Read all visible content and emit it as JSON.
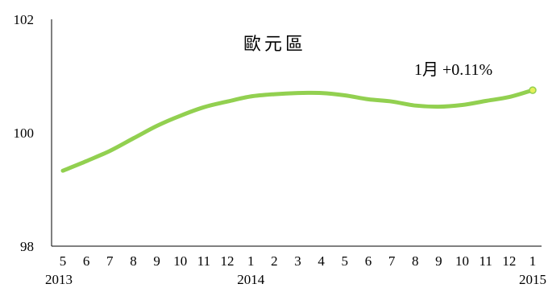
{
  "chart_data": {
    "type": "line",
    "title": "歐元區",
    "xlabel": "",
    "ylabel": "",
    "ylim": [
      98,
      102
    ],
    "y_ticks": [
      "98",
      "100",
      "102"
    ],
    "categories": [
      "5",
      "6",
      "7",
      "8",
      "9",
      "10",
      "11",
      "12",
      "1",
      "2",
      "3",
      "4",
      "5",
      "6",
      "7",
      "8",
      "9",
      "10",
      "11",
      "12",
      "1"
    ],
    "year_labels": [
      {
        "label": "2013",
        "index": 0
      },
      {
        "label": "2014",
        "index": 8
      },
      {
        "label": "2015",
        "index": 20
      }
    ],
    "series": [
      {
        "color": "#92d050",
        "values": [
          99.33,
          99.5,
          99.68,
          99.9,
          100.12,
          100.3,
          100.45,
          100.55,
          100.64,
          100.68,
          100.7,
          100.7,
          100.66,
          100.59,
          100.55,
          100.48,
          100.46,
          100.49,
          100.56,
          100.63,
          100.75
        ]
      }
    ],
    "annotation": "1月 +0.11%",
    "grid": false
  }
}
